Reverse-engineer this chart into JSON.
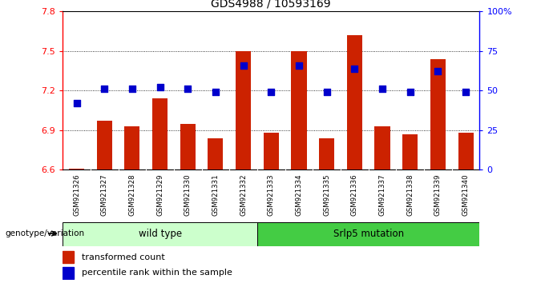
{
  "title": "GDS4988 / 10593169",
  "samples": [
    "GSM921326",
    "GSM921327",
    "GSM921328",
    "GSM921329",
    "GSM921330",
    "GSM921331",
    "GSM921332",
    "GSM921333",
    "GSM921334",
    "GSM921335",
    "GSM921336",
    "GSM921337",
    "GSM921338",
    "GSM921339",
    "GSM921340"
  ],
  "red_values": [
    6.61,
    6.97,
    6.93,
    7.14,
    6.95,
    6.84,
    7.5,
    6.88,
    7.5,
    6.84,
    7.62,
    6.93,
    6.87,
    7.44,
    6.88
  ],
  "blue_percentiles": [
    42,
    51,
    51,
    52,
    51,
    49,
    66,
    49,
    66,
    49,
    64,
    51,
    49,
    62,
    49
  ],
  "ylim": [
    6.6,
    7.8
  ],
  "yticks_left": [
    6.6,
    6.9,
    7.2,
    7.5,
    7.8
  ],
  "yticks_right": [
    0,
    25,
    50,
    75,
    100
  ],
  "bar_color": "#cc2200",
  "dot_color": "#0000cc",
  "group1_label": "wild type",
  "group2_label": "Srlp5 mutation",
  "group1_color": "#ccffcc",
  "group2_color": "#44cc44",
  "bg_color": "#c8c8c8",
  "legend_red": "transformed count",
  "legend_blue": "percentile rank within the sample",
  "bar_width": 0.55,
  "baseline": 6.6,
  "dot_size": 40,
  "n_wild": 7,
  "n_srp": 8
}
